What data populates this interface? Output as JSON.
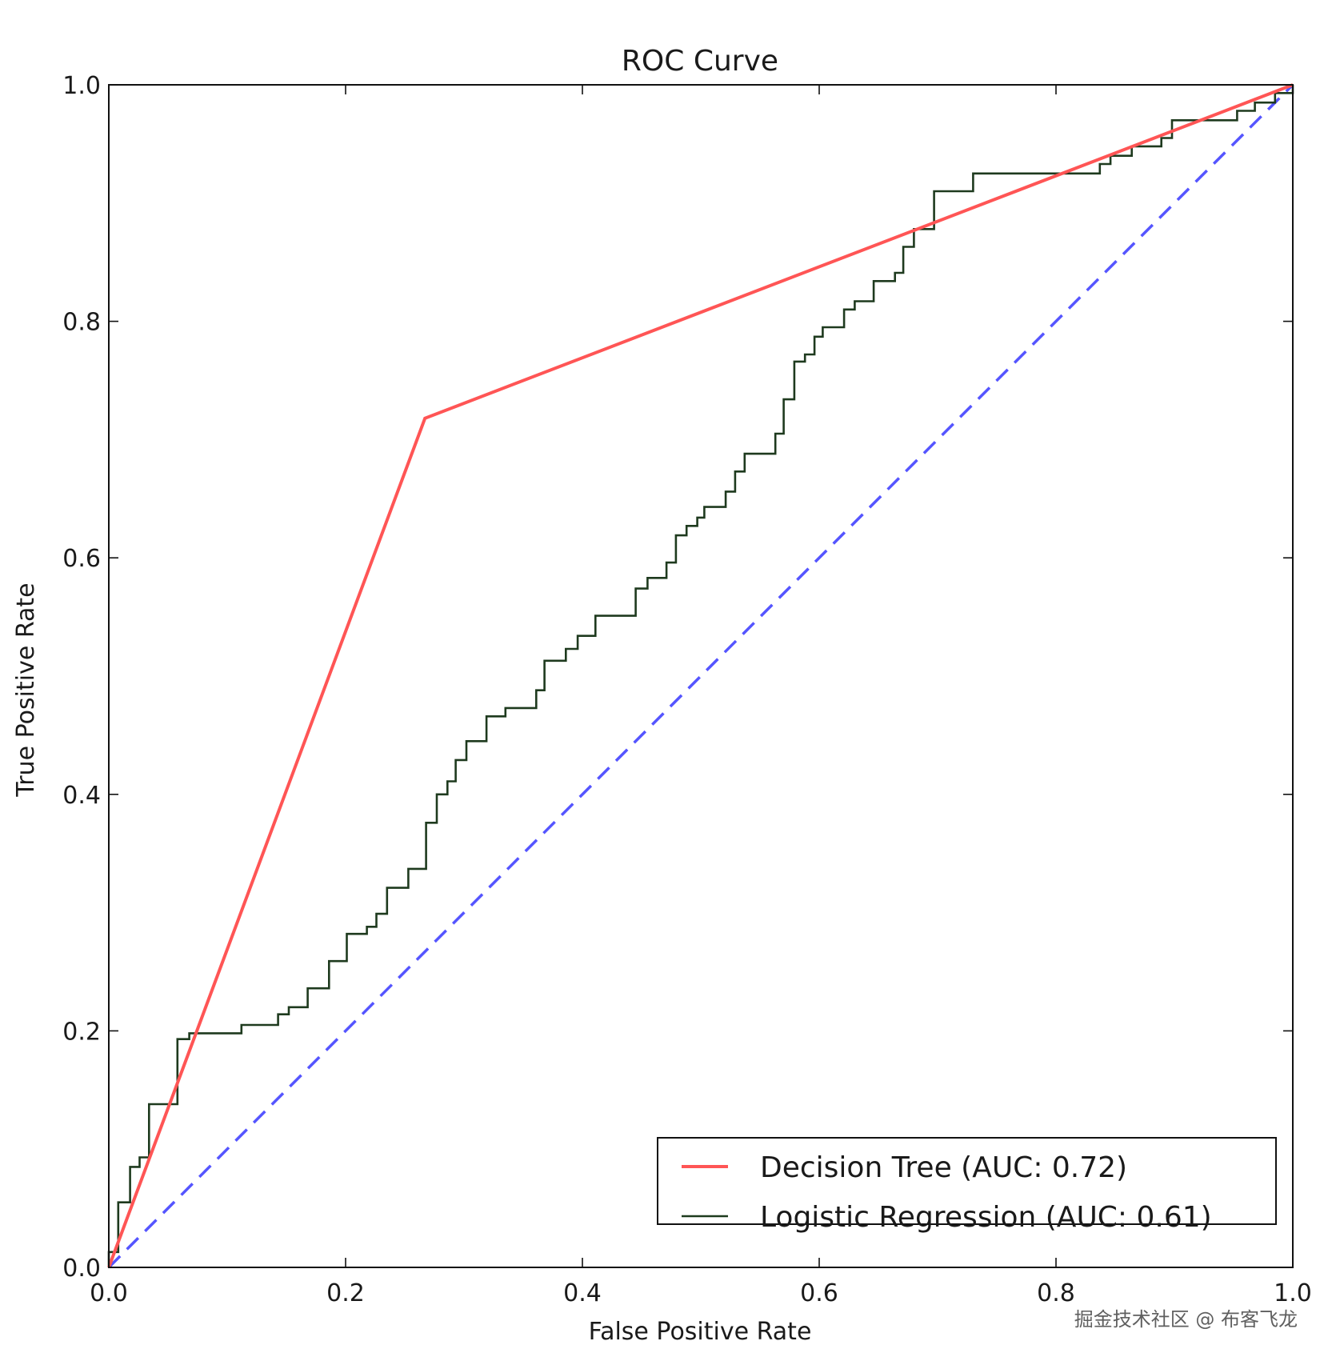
{
  "chart_data": {
    "type": "line",
    "title": "ROC Curve",
    "xlabel": "False Positive Rate",
    "ylabel": "True Positive Rate",
    "xlim": [
      0.0,
      1.0
    ],
    "ylim": [
      0.0,
      1.0
    ],
    "xticks": [
      "0.0",
      "0.2",
      "0.4",
      "0.6",
      "0.8",
      "1.0"
    ],
    "yticks": [
      "0.0",
      "0.2",
      "0.4",
      "0.6",
      "0.8",
      "1.0"
    ],
    "grid": false,
    "legend_position": "lower-right",
    "series": [
      {
        "name": "Decision Tree (AUC: 0.72)",
        "color": "#ff5555",
        "style": "solid",
        "x": [
          0.0,
          0.267,
          1.0
        ],
        "y": [
          0.0,
          0.718,
          1.0
        ]
      },
      {
        "name": "Logistic Regression (AUC: 0.61)",
        "color": "#1e3a1e",
        "style": "solid",
        "points": [
          [
            0.0,
            0.0
          ],
          [
            0.0,
            0.013
          ],
          [
            0.008,
            0.013
          ],
          [
            0.008,
            0.055
          ],
          [
            0.018,
            0.055
          ],
          [
            0.018,
            0.085
          ],
          [
            0.026,
            0.085
          ],
          [
            0.026,
            0.093
          ],
          [
            0.034,
            0.093
          ],
          [
            0.034,
            0.138
          ],
          [
            0.058,
            0.138
          ],
          [
            0.058,
            0.193
          ],
          [
            0.068,
            0.193
          ],
          [
            0.068,
            0.198
          ],
          [
            0.112,
            0.198
          ],
          [
            0.112,
            0.205
          ],
          [
            0.143,
            0.205
          ],
          [
            0.143,
            0.214
          ],
          [
            0.152,
            0.214
          ],
          [
            0.152,
            0.22
          ],
          [
            0.168,
            0.22
          ],
          [
            0.168,
            0.236
          ],
          [
            0.186,
            0.236
          ],
          [
            0.186,
            0.259
          ],
          [
            0.201,
            0.259
          ],
          [
            0.201,
            0.282
          ],
          [
            0.218,
            0.282
          ],
          [
            0.218,
            0.288
          ],
          [
            0.226,
            0.288
          ],
          [
            0.226,
            0.299
          ],
          [
            0.235,
            0.299
          ],
          [
            0.235,
            0.321
          ],
          [
            0.253,
            0.321
          ],
          [
            0.253,
            0.337
          ],
          [
            0.268,
            0.337
          ],
          [
            0.268,
            0.376
          ],
          [
            0.277,
            0.376
          ],
          [
            0.277,
            0.4
          ],
          [
            0.286,
            0.4
          ],
          [
            0.286,
            0.411
          ],
          [
            0.293,
            0.411
          ],
          [
            0.293,
            0.429
          ],
          [
            0.302,
            0.429
          ],
          [
            0.302,
            0.445
          ],
          [
            0.319,
            0.445
          ],
          [
            0.319,
            0.466
          ],
          [
            0.335,
            0.466
          ],
          [
            0.335,
            0.473
          ],
          [
            0.361,
            0.473
          ],
          [
            0.361,
            0.488
          ],
          [
            0.368,
            0.488
          ],
          [
            0.368,
            0.513
          ],
          [
            0.386,
            0.513
          ],
          [
            0.386,
            0.523
          ],
          [
            0.396,
            0.523
          ],
          [
            0.396,
            0.534
          ],
          [
            0.411,
            0.534
          ],
          [
            0.411,
            0.551
          ],
          [
            0.445,
            0.551
          ],
          [
            0.445,
            0.574
          ],
          [
            0.455,
            0.574
          ],
          [
            0.455,
            0.583
          ],
          [
            0.471,
            0.583
          ],
          [
            0.471,
            0.596
          ],
          [
            0.479,
            0.596
          ],
          [
            0.479,
            0.619
          ],
          [
            0.488,
            0.619
          ],
          [
            0.488,
            0.627
          ],
          [
            0.497,
            0.627
          ],
          [
            0.497,
            0.634
          ],
          [
            0.503,
            0.634
          ],
          [
            0.503,
            0.643
          ],
          [
            0.521,
            0.643
          ],
          [
            0.521,
            0.656
          ],
          [
            0.529,
            0.656
          ],
          [
            0.529,
            0.673
          ],
          [
            0.537,
            0.673
          ],
          [
            0.537,
            0.688
          ],
          [
            0.563,
            0.688
          ],
          [
            0.563,
            0.705
          ],
          [
            0.57,
            0.705
          ],
          [
            0.57,
            0.734
          ],
          [
            0.579,
            0.734
          ],
          [
            0.579,
            0.766
          ],
          [
            0.588,
            0.766
          ],
          [
            0.588,
            0.772
          ],
          [
            0.596,
            0.772
          ],
          [
            0.596,
            0.787
          ],
          [
            0.603,
            0.787
          ],
          [
            0.603,
            0.795
          ],
          [
            0.621,
            0.795
          ],
          [
            0.621,
            0.81
          ],
          [
            0.63,
            0.81
          ],
          [
            0.63,
            0.817
          ],
          [
            0.646,
            0.817
          ],
          [
            0.646,
            0.834
          ],
          [
            0.664,
            0.834
          ],
          [
            0.664,
            0.841
          ],
          [
            0.671,
            0.841
          ],
          [
            0.671,
            0.863
          ],
          [
            0.68,
            0.863
          ],
          [
            0.68,
            0.878
          ],
          [
            0.697,
            0.878
          ],
          [
            0.697,
            0.91
          ],
          [
            0.73,
            0.91
          ],
          [
            0.73,
            0.925
          ],
          [
            0.837,
            0.925
          ],
          [
            0.837,
            0.933
          ],
          [
            0.846,
            0.933
          ],
          [
            0.846,
            0.94
          ],
          [
            0.864,
            0.94
          ],
          [
            0.864,
            0.948
          ],
          [
            0.889,
            0.948
          ],
          [
            0.889,
            0.955
          ],
          [
            0.898,
            0.955
          ],
          [
            0.898,
            0.97
          ],
          [
            0.953,
            0.97
          ],
          [
            0.953,
            0.978
          ],
          [
            0.968,
            0.978
          ],
          [
            0.968,
            0.985
          ],
          [
            0.985,
            0.985
          ],
          [
            0.985,
            0.993
          ],
          [
            1.0,
            0.993
          ],
          [
            1.0,
            1.0
          ]
        ]
      },
      {
        "name": "",
        "color": "#5555ff",
        "style": "dashed",
        "x": [
          0.0,
          1.0
        ],
        "y": [
          0.0,
          1.0
        ]
      }
    ]
  },
  "watermark": "掘金技术社区 @ 布客飞龙"
}
